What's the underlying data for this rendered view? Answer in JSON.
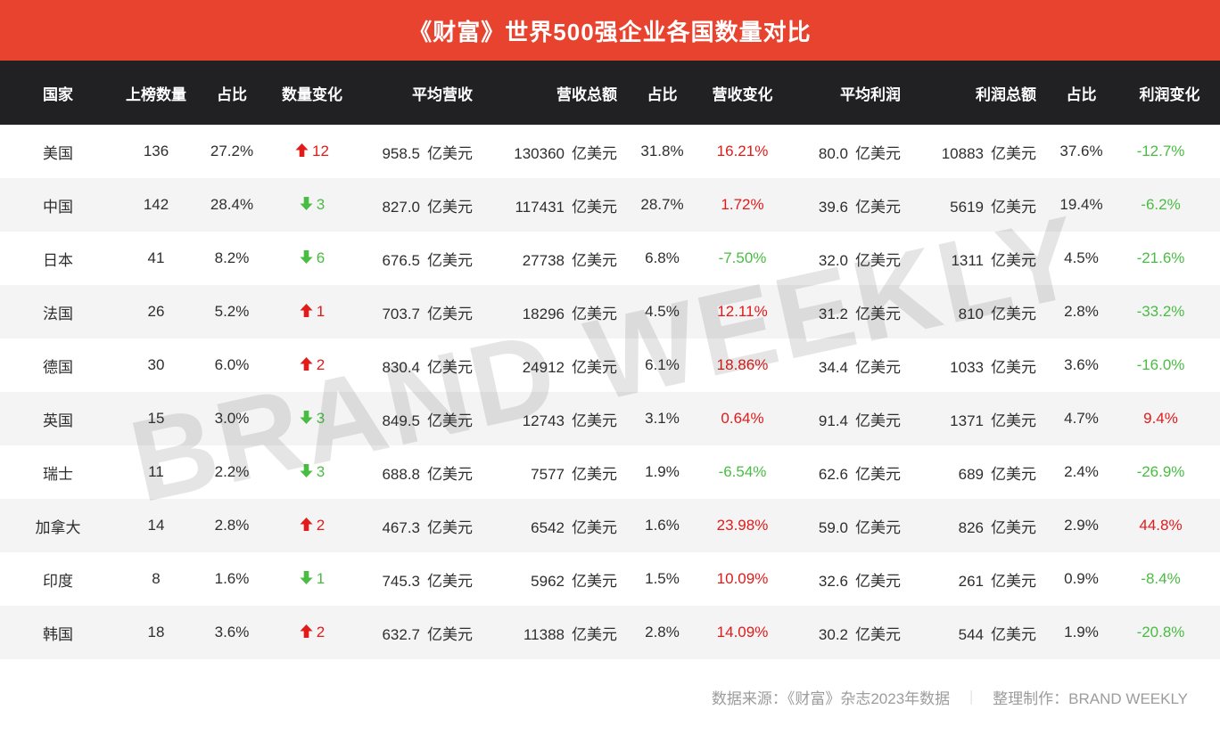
{
  "banner": {
    "title": "《财富》世界500强企业各国数量对比"
  },
  "watermark": {
    "text": "BRAND WEEKLY"
  },
  "footer": {
    "source": "数据来源：《财富》杂志2023年数据",
    "divider": "｜",
    "credit": "整理制作：BRAND WEEKLY"
  },
  "colors": {
    "banner_bg": "#e8432f",
    "header_bg": "#212124",
    "row_stripe": "#f4f4f5",
    "positive_red": "#e21a1a",
    "negative_green": "#49bc42",
    "footer_text": "#9c9c9c"
  },
  "chart_data": {
    "type": "table",
    "title": "《财富》世界500强企业各国数量对比",
    "unit": "亿美元",
    "columns": [
      "国家",
      "上榜数量",
      "占比",
      "数量变化",
      "平均营收",
      "营收总额",
      "占比",
      "营收变化",
      "平均利润",
      "利润总额",
      "占比",
      "利润变化"
    ],
    "rows": [
      {
        "country": "美国",
        "count": "136",
        "count_share": "27.2%",
        "count_change_dir": "up",
        "count_change": "12",
        "avg_revenue": "958.5",
        "total_revenue": "130360",
        "revenue_share": "31.8%",
        "revenue_change": "16.21%",
        "revenue_trend": "positive",
        "avg_profit": "80.0",
        "total_profit": "10883",
        "profit_share": "37.6%",
        "profit_change": "-12.7%",
        "profit_trend": "negative"
      },
      {
        "country": "中国",
        "count": "142",
        "count_share": "28.4%",
        "count_change_dir": "down",
        "count_change": "3",
        "avg_revenue": "827.0",
        "total_revenue": "117431",
        "revenue_share": "28.7%",
        "revenue_change": "1.72%",
        "revenue_trend": "positive",
        "avg_profit": "39.6",
        "total_profit": "5619",
        "profit_share": "19.4%",
        "profit_change": "-6.2%",
        "profit_trend": "negative"
      },
      {
        "country": "日本",
        "count": "41",
        "count_share": "8.2%",
        "count_change_dir": "down",
        "count_change": "6",
        "avg_revenue": "676.5",
        "total_revenue": "27738",
        "revenue_share": "6.8%",
        "revenue_change": "-7.50%",
        "revenue_trend": "negative",
        "avg_profit": "32.0",
        "total_profit": "1311",
        "profit_share": "4.5%",
        "profit_change": "-21.6%",
        "profit_trend": "negative"
      },
      {
        "country": "法国",
        "count": "26",
        "count_share": "5.2%",
        "count_change_dir": "up",
        "count_change": "1",
        "avg_revenue": "703.7",
        "total_revenue": "18296",
        "revenue_share": "4.5%",
        "revenue_change": "12.11%",
        "revenue_trend": "positive",
        "avg_profit": "31.2",
        "total_profit": "810",
        "profit_share": "2.8%",
        "profit_change": "-33.2%",
        "profit_trend": "negative"
      },
      {
        "country": "德国",
        "count": "30",
        "count_share": "6.0%",
        "count_change_dir": "up",
        "count_change": "2",
        "avg_revenue": "830.4",
        "total_revenue": "24912",
        "revenue_share": "6.1%",
        "revenue_change": "18.86%",
        "revenue_trend": "positive",
        "avg_profit": "34.4",
        "total_profit": "1033",
        "profit_share": "3.6%",
        "profit_change": "-16.0%",
        "profit_trend": "negative"
      },
      {
        "country": "英国",
        "count": "15",
        "count_share": "3.0%",
        "count_change_dir": "down",
        "count_change": "3",
        "avg_revenue": "849.5",
        "total_revenue": "12743",
        "revenue_share": "3.1%",
        "revenue_change": "0.64%",
        "revenue_trend": "positive",
        "avg_profit": "91.4",
        "total_profit": "1371",
        "profit_share": "4.7%",
        "profit_change": "9.4%",
        "profit_trend": "positive"
      },
      {
        "country": "瑞士",
        "count": "11",
        "count_share": "2.2%",
        "count_change_dir": "down",
        "count_change": "3",
        "avg_revenue": "688.8",
        "total_revenue": "7577",
        "revenue_share": "1.9%",
        "revenue_change": "-6.54%",
        "revenue_trend": "negative",
        "avg_profit": "62.6",
        "total_profit": "689",
        "profit_share": "2.4%",
        "profit_change": "-26.9%",
        "profit_trend": "negative"
      },
      {
        "country": "加拿大",
        "count": "14",
        "count_share": "2.8%",
        "count_change_dir": "up",
        "count_change": "2",
        "avg_revenue": "467.3",
        "total_revenue": "6542",
        "revenue_share": "1.6%",
        "revenue_change": "23.98%",
        "revenue_trend": "positive",
        "avg_profit": "59.0",
        "total_profit": "826",
        "profit_share": "2.9%",
        "profit_change": "44.8%",
        "profit_trend": "positive"
      },
      {
        "country": "印度",
        "count": "8",
        "count_share": "1.6%",
        "count_change_dir": "down",
        "count_change": "1",
        "avg_revenue": "745.3",
        "total_revenue": "5962",
        "revenue_share": "1.5%",
        "revenue_change": "10.09%",
        "revenue_trend": "positive",
        "avg_profit": "32.6",
        "total_profit": "261",
        "profit_share": "0.9%",
        "profit_change": "-8.4%",
        "profit_trend": "negative"
      },
      {
        "country": "韩国",
        "count": "18",
        "count_share": "3.6%",
        "count_change_dir": "up",
        "count_change": "2",
        "avg_revenue": "632.7",
        "total_revenue": "11388",
        "revenue_share": "2.8%",
        "revenue_change": "14.09%",
        "revenue_trend": "positive",
        "avg_profit": "30.2",
        "total_profit": "544",
        "profit_share": "1.9%",
        "profit_change": "-20.8%",
        "profit_trend": "negative"
      }
    ]
  }
}
